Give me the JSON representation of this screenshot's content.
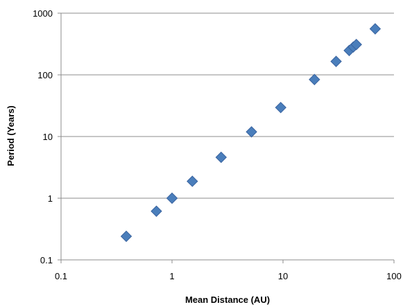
{
  "chart_data": {
    "type": "scatter",
    "title": "",
    "xlabel": "Mean Distance (AU)",
    "ylabel": "Period (Years)",
    "x_scale": "log",
    "y_scale": "log",
    "xlim": [
      0.1,
      100
    ],
    "ylim": [
      0.1,
      1000
    ],
    "x_ticks": [
      "0.1",
      "1",
      "10",
      "100"
    ],
    "y_ticks": [
      "0.1",
      "1",
      "10",
      "100",
      "1000"
    ],
    "grid": "horizontal",
    "legend": "none",
    "marker": "diamond",
    "marker_color": "#4a7ebb",
    "marker_edge_color": "#3a64a0",
    "points": [
      {
        "x": 0.387,
        "y": 0.241
      },
      {
        "x": 0.723,
        "y": 0.615
      },
      {
        "x": 1.0,
        "y": 1.0
      },
      {
        "x": 1.524,
        "y": 1.88
      },
      {
        "x": 2.77,
        "y": 4.6
      },
      {
        "x": 5.2,
        "y": 11.9
      },
      {
        "x": 9.54,
        "y": 29.5
      },
      {
        "x": 19.2,
        "y": 84.0
      },
      {
        "x": 30.1,
        "y": 165.0
      },
      {
        "x": 39.5,
        "y": 248.0
      },
      {
        "x": 43.0,
        "y": 283.0
      },
      {
        "x": 45.8,
        "y": 310.0
      },
      {
        "x": 67.7,
        "y": 557.0
      }
    ]
  }
}
